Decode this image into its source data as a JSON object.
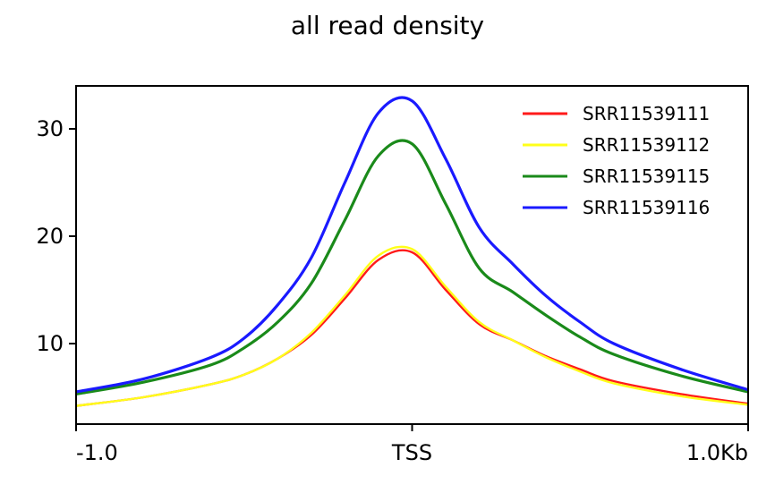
{
  "chart_data": {
    "type": "line",
    "title": "all read density",
    "xlabel": "",
    "ylabel": "",
    "x_ticks": [
      {
        "x": -1000,
        "label": "-1.0"
      },
      {
        "x": 0,
        "label": "TSS"
      },
      {
        "x": 1000,
        "label": "1.0Kb"
      }
    ],
    "y_ticks": [
      10,
      20,
      30
    ],
    "xlim": [
      -1000,
      1000
    ],
    "ylim": [
      2.5,
      34
    ],
    "grid": false,
    "legend_position": "top-right",
    "x": [
      -1000,
      -800,
      -600,
      -500,
      -400,
      -300,
      -200,
      -100,
      0,
      100,
      200,
      300,
      400,
      500,
      600,
      800,
      1000
    ],
    "series": [
      {
        "name": "SRR11539111",
        "color": "#ff1a1a",
        "values": [
          4.2,
          5.0,
          6.2,
          7.1,
          8.6,
          10.8,
          14.2,
          17.8,
          18.5,
          15.0,
          11.8,
          10.3,
          8.8,
          7.6,
          6.5,
          5.3,
          4.4
        ]
      },
      {
        "name": "SRR11539112",
        "color": "#ffff1a",
        "values": [
          4.2,
          5.0,
          6.2,
          7.1,
          8.6,
          11.0,
          14.5,
          18.2,
          18.8,
          15.3,
          12.0,
          10.3,
          8.7,
          7.4,
          6.3,
          5.1,
          4.3
        ]
      },
      {
        "name": "SRR11539115",
        "color": "#1a8a1a",
        "values": [
          5.3,
          6.4,
          8.0,
          9.6,
          12.0,
          15.6,
          21.5,
          27.5,
          28.6,
          23.0,
          17.0,
          14.8,
          12.6,
          10.6,
          9.0,
          7.0,
          5.5
        ]
      },
      {
        "name": "SRR11539116",
        "color": "#1a1aff",
        "values": [
          5.5,
          6.7,
          8.7,
          10.5,
          13.6,
          18.0,
          25.0,
          31.5,
          32.6,
          27.2,
          20.8,
          17.4,
          14.4,
          12.0,
          10.0,
          7.6,
          5.7
        ]
      }
    ]
  }
}
